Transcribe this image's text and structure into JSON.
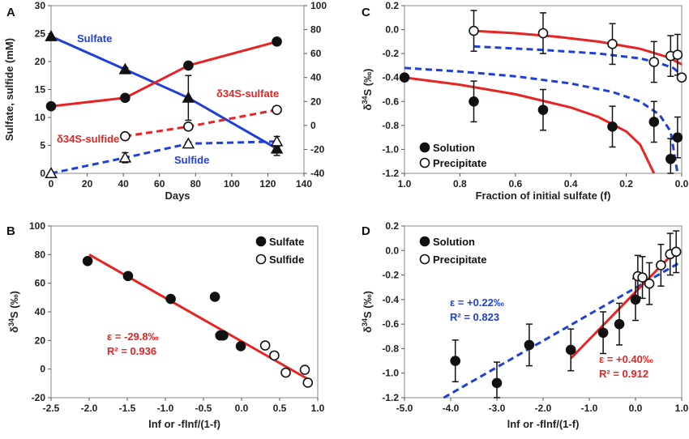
{
  "chart_data": [
    {
      "panel": "A",
      "type": "line",
      "xlabel": "Days",
      "ylabel": "Sulfate, sulfide (mM)",
      "xlim": [
        0,
        140
      ],
      "ylim": [
        0,
        30
      ],
      "y2lim": [
        -40,
        100
      ],
      "xticks": [
        0,
        20,
        40,
        60,
        80,
        100,
        120,
        140
      ],
      "yticks": [
        0,
        5,
        10,
        15,
        20,
        25,
        30
      ],
      "y2ticks": [
        -40,
        -20,
        0,
        20,
        40,
        60,
        80,
        100
      ],
      "series": [
        {
          "name": "Sulfate",
          "axis": "left",
          "color": "#1f3fd9",
          "marker": "triangle-filled",
          "line": "solid",
          "x": [
            0,
            41,
            76,
            125
          ],
          "y": [
            24.5,
            18.6,
            13.5,
            4.4
          ],
          "err": [
            0,
            0.3,
            4.0,
            1.2
          ]
        },
        {
          "name": "Sulfide",
          "axis": "left",
          "color": "#1f3fd9",
          "marker": "triangle-open",
          "line": "dashed",
          "x": [
            0,
            41,
            76,
            125
          ],
          "y": [
            0,
            2.8,
            5.3,
            5.7
          ],
          "err": [
            0,
            0.9,
            0.3,
            0.9
          ]
        },
        {
          "name": "δ34S-sulfate",
          "axis": "right",
          "color": "#e82323",
          "marker": "circle-filled",
          "line": "solid",
          "x": [
            0,
            41,
            76,
            125
          ],
          "y": [
            16,
            23,
            50,
            70
          ],
          "err": [
            0,
            0,
            0,
            3
          ]
        },
        {
          "name": "δ34S-sulfide",
          "axis": "right",
          "color": "#e82323",
          "marker": "circle-open",
          "line": "dashed",
          "x": [
            41,
            76,
            125
          ],
          "y": [
            -9,
            -1,
            13
          ],
          "err": [
            0,
            2,
            0
          ]
        }
      ],
      "labels": {
        "sulfate": "Sulfate",
        "sulfide": "Sulfide",
        "d34s_sulfate": "δ34S-sulfate",
        "d34s_sulfide": "δ34S-sulfide"
      }
    },
    {
      "panel": "B",
      "type": "scatter",
      "xlabel": "lnf or -flnf/(1-f)",
      "ylabel": "δ34S (‰)",
      "xlim": [
        -2.5,
        1.0
      ],
      "ylim": [
        -20,
        100
      ],
      "xticks": [
        -2.5,
        -2.0,
        -1.5,
        -1.0,
        -0.5,
        0.0,
        0.5,
        1.0
      ],
      "yticks": [
        -20,
        0,
        20,
        40,
        60,
        80,
        100
      ],
      "series": [
        {
          "name": "Sulfate",
          "marker": "circle-filled",
          "x": [
            -2.02,
            -1.49,
            -0.93,
            -0.35,
            -0.28,
            -0.24,
            -0.01
          ],
          "y": [
            75.5,
            65,
            49,
            50.5,
            23.5,
            23.5,
            16
          ]
        },
        {
          "name": "Sulfide",
          "marker": "circle-open",
          "x": [
            0.31,
            0.43,
            0.58,
            0.83,
            0.87
          ],
          "y": [
            16.5,
            9.5,
            -2.5,
            -0.5,
            -9.5
          ]
        }
      ],
      "fit": {
        "color": "#e82323",
        "x": [
          -2.0,
          0.87
        ],
        "y": [
          80,
          -7
        ]
      },
      "annotation": {
        "epsilon": "ε = -29.8‰",
        "r2": "R² = 0.936"
      },
      "legend": [
        "Sulfate",
        "Sulfide"
      ]
    },
    {
      "panel": "C",
      "type": "scatter",
      "xlabel": "Fraction of initial sulfate (f)",
      "ylabel": "δ34S (‰)",
      "xlim": [
        1.0,
        0.0
      ],
      "ylim": [
        -1.2,
        0.2
      ],
      "xticks": [
        1.0,
        0.8,
        0.6,
        0.4,
        0.2,
        0.0
      ],
      "yticks": [
        -1.2,
        -1.0,
        -0.8,
        -0.6,
        -0.4,
        -0.2,
        0.0,
        0.2
      ],
      "series": [
        {
          "name": "Solution",
          "marker": "circle-filled",
          "x": [
            1.0,
            0.75,
            0.5,
            0.25,
            0.1,
            0.04,
            0.015
          ],
          "y": [
            -0.4,
            -0.6,
            -0.67,
            -0.81,
            -0.77,
            -1.08,
            -0.9
          ],
          "err": [
            0.0,
            0.17,
            0.17,
            0.17,
            0.17,
            0.17,
            0.17
          ]
        },
        {
          "name": "Precipitate",
          "marker": "circle-open",
          "x": [
            0.75,
            0.5,
            0.25,
            0.1,
            0.04,
            0.015,
            0.0
          ],
          "y": [
            -0.01,
            -0.03,
            -0.12,
            -0.27,
            -0.22,
            -0.21,
            -0.4
          ],
          "err": [
            0.17,
            0.17,
            0.17,
            0.17,
            0.17,
            0.17,
            0.0
          ]
        }
      ],
      "curves": [
        {
          "name": "Precipitate model",
          "color": "#e82323",
          "line": "solid",
          "x": [
            0.75,
            0.6,
            0.45,
            0.3,
            0.15,
            0.05,
            0.0
          ],
          "y": [
            -0.01,
            -0.03,
            -0.06,
            -0.1,
            -0.16,
            -0.23,
            -0.29
          ]
        },
        {
          "name": "Solution model",
          "color": "#e82323",
          "line": "solid",
          "x": [
            1.0,
            0.8,
            0.6,
            0.4,
            0.3,
            0.2,
            0.15,
            0.1
          ],
          "y": [
            -0.4,
            -0.46,
            -0.54,
            -0.65,
            -0.73,
            -0.85,
            -0.96,
            -1.2
          ]
        },
        {
          "name": "Precipitate model 2",
          "color": "#1f3fd9",
          "line": "dashed",
          "x": [
            0.75,
            0.5,
            0.3,
            0.15,
            0.08,
            0.03,
            0.0
          ],
          "y": [
            -0.14,
            -0.17,
            -0.2,
            -0.24,
            -0.28,
            -0.32,
            -0.38
          ]
        },
        {
          "name": "Solution model 2",
          "color": "#1f3fd9",
          "line": "dashed",
          "x": [
            1.0,
            0.8,
            0.6,
            0.4,
            0.25,
            0.15,
            0.08,
            0.04,
            0.015
          ],
          "y": [
            -0.32,
            -0.35,
            -0.39,
            -0.45,
            -0.52,
            -0.6,
            -0.71,
            -0.85,
            -1.2
          ]
        }
      ],
      "legend": [
        "Solution",
        "Precipitate"
      ]
    },
    {
      "panel": "D",
      "type": "scatter",
      "xlabel": "lnf or -flnf/(1-f)",
      "ylabel": "δ34S (‰)",
      "xlim": [
        -5.0,
        1.0
      ],
      "ylim": [
        -1.2,
        0.2
      ],
      "xticks": [
        -5.0,
        -4.0,
        -3.0,
        -2.0,
        -1.0,
        0.0,
        1.0
      ],
      "yticks": [
        -1.2,
        -1.0,
        -0.8,
        -0.6,
        -0.4,
        -0.2,
        0.0,
        0.2
      ],
      "series": [
        {
          "name": "Solution",
          "marker": "circle-filled",
          "x": [
            -3.9,
            -3.0,
            -2.3,
            -1.4,
            -0.7,
            -0.35,
            0.0
          ],
          "y": [
            -0.9,
            -1.08,
            -0.77,
            -0.81,
            -0.67,
            -0.6,
            -0.4
          ],
          "err": [
            0.17,
            0.17,
            0.17,
            0.17,
            0.17,
            0.17,
            0.17
          ]
        },
        {
          "name": "Precipitate",
          "marker": "circle-open",
          "x": [
            0.05,
            0.15,
            0.3,
            0.55,
            0.75,
            0.88
          ],
          "y": [
            -0.21,
            -0.22,
            -0.27,
            -0.12,
            -0.03,
            -0.01
          ],
          "err": [
            0.17,
            0.17,
            0.17,
            0.17,
            0.17,
            0.17
          ]
        }
      ],
      "fits": [
        {
          "name": "Precipitate fit",
          "color": "#1f3fd9",
          "line": "dashed",
          "x": [
            -4.15,
            0.95
          ],
          "y": [
            -1.2,
            -0.1
          ]
        },
        {
          "name": "Solution fit",
          "color": "#e82323",
          "line": "solid",
          "x": [
            -1.4,
            0.9
          ],
          "y": [
            -0.88,
            0.01
          ]
        }
      ],
      "annotations": [
        {
          "color": "#1f3fd9",
          "epsilon": "ε = +0.22‰",
          "r2": "R² = 0.823"
        },
        {
          "color": "#e82323",
          "epsilon": "ε = +0.40‰",
          "r2": "R² = 0.912"
        }
      ],
      "legend": [
        "Solution",
        "Precipitate"
      ]
    }
  ]
}
